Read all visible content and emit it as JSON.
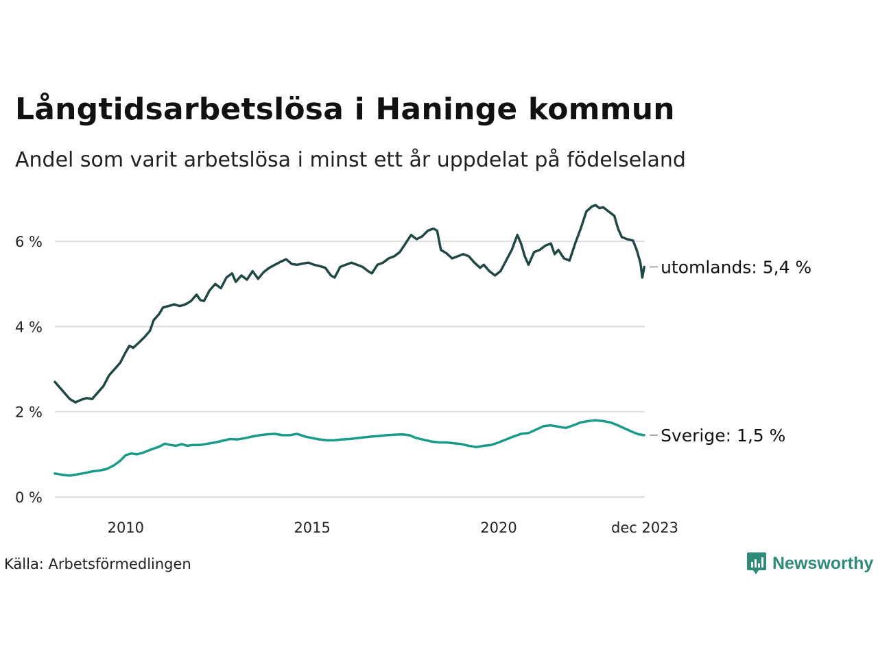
{
  "header": {
    "title": "Långtidsarbetslösa i Haninge kommun",
    "subtitle": "Andel som varit arbetslösa i minst ett år uppdelat på födelseland"
  },
  "footer": {
    "source": "Källa: Arbetsförmedlingen",
    "brand": "Newsworthy"
  },
  "colors": {
    "utomlands": "#1f4743",
    "sverige": "#1a9a88",
    "grid": "#dddddd",
    "brand": "#2e8b7a"
  },
  "chart_data": {
    "type": "line",
    "title": "Långtidsarbetslösa i Haninge kommun",
    "subtitle": "Andel som varit arbetslösa i minst ett år uppdelat på födelseland",
    "xlabel": "",
    "ylabel": "",
    "ylim": [
      0,
      7
    ],
    "xlim": [
      2008.1,
      2023.917
    ],
    "y_ticks": [
      {
        "value": 0,
        "label": "0 %"
      },
      {
        "value": 2,
        "label": "2 %"
      },
      {
        "value": 4,
        "label": "4 %"
      },
      {
        "value": 6,
        "label": "6 %"
      }
    ],
    "x_ticks": [
      {
        "value": 2010,
        "label": "2010"
      },
      {
        "value": 2015,
        "label": "2015"
      },
      {
        "value": 2020,
        "label": "2020"
      },
      {
        "value": 2023.917,
        "label": "dec 2023"
      }
    ],
    "grid": true,
    "series": [
      {
        "name": "utomlands",
        "end_label": "utomlands: 5,4 %",
        "color": "#1f4743",
        "points": [
          [
            2008.1,
            2.7
          ],
          [
            2008.2,
            2.6
          ],
          [
            2008.35,
            2.45
          ],
          [
            2008.5,
            2.3
          ],
          [
            2008.65,
            2.22
          ],
          [
            2008.8,
            2.28
          ],
          [
            2008.95,
            2.32
          ],
          [
            2009.1,
            2.3
          ],
          [
            2009.25,
            2.45
          ],
          [
            2009.4,
            2.6
          ],
          [
            2009.55,
            2.85
          ],
          [
            2009.7,
            3.0
          ],
          [
            2009.85,
            3.15
          ],
          [
            2010.0,
            3.4
          ],
          [
            2010.1,
            3.55
          ],
          [
            2010.2,
            3.5
          ],
          [
            2010.35,
            3.62
          ],
          [
            2010.5,
            3.75
          ],
          [
            2010.65,
            3.9
          ],
          [
            2010.75,
            4.15
          ],
          [
            2010.9,
            4.3
          ],
          [
            2011.0,
            4.45
          ],
          [
            2011.15,
            4.48
          ],
          [
            2011.3,
            4.52
          ],
          [
            2011.45,
            4.48
          ],
          [
            2011.6,
            4.52
          ],
          [
            2011.75,
            4.6
          ],
          [
            2011.9,
            4.75
          ],
          [
            2012.0,
            4.62
          ],
          [
            2012.1,
            4.6
          ],
          [
            2012.25,
            4.85
          ],
          [
            2012.4,
            5.0
          ],
          [
            2012.55,
            4.9
          ],
          [
            2012.7,
            5.15
          ],
          [
            2012.85,
            5.25
          ],
          [
            2012.95,
            5.05
          ],
          [
            2013.1,
            5.2
          ],
          [
            2013.25,
            5.1
          ],
          [
            2013.4,
            5.3
          ],
          [
            2013.55,
            5.12
          ],
          [
            2013.7,
            5.28
          ],
          [
            2013.85,
            5.38
          ],
          [
            2014.0,
            5.45
          ],
          [
            2014.15,
            5.52
          ],
          [
            2014.3,
            5.58
          ],
          [
            2014.45,
            5.47
          ],
          [
            2014.6,
            5.45
          ],
          [
            2014.75,
            5.48
          ],
          [
            2014.9,
            5.5
          ],
          [
            2015.05,
            5.45
          ],
          [
            2015.2,
            5.42
          ],
          [
            2015.35,
            5.38
          ],
          [
            2015.5,
            5.2
          ],
          [
            2015.6,
            5.15
          ],
          [
            2015.75,
            5.4
          ],
          [
            2015.9,
            5.45
          ],
          [
            2016.05,
            5.5
          ],
          [
            2016.2,
            5.45
          ],
          [
            2016.35,
            5.4
          ],
          [
            2016.5,
            5.3
          ],
          [
            2016.6,
            5.25
          ],
          [
            2016.75,
            5.45
          ],
          [
            2016.9,
            5.5
          ],
          [
            2017.05,
            5.6
          ],
          [
            2017.2,
            5.65
          ],
          [
            2017.35,
            5.75
          ],
          [
            2017.5,
            5.95
          ],
          [
            2017.65,
            6.15
          ],
          [
            2017.8,
            6.05
          ],
          [
            2017.95,
            6.12
          ],
          [
            2018.1,
            6.25
          ],
          [
            2018.25,
            6.3
          ],
          [
            2018.35,
            6.25
          ],
          [
            2018.45,
            5.8
          ],
          [
            2018.6,
            5.72
          ],
          [
            2018.75,
            5.6
          ],
          [
            2018.9,
            5.65
          ],
          [
            2019.05,
            5.7
          ],
          [
            2019.2,
            5.65
          ],
          [
            2019.35,
            5.5
          ],
          [
            2019.5,
            5.38
          ],
          [
            2019.6,
            5.45
          ],
          [
            2019.75,
            5.3
          ],
          [
            2019.9,
            5.2
          ],
          [
            2020.05,
            5.3
          ],
          [
            2020.2,
            5.55
          ],
          [
            2020.35,
            5.8
          ],
          [
            2020.5,
            6.15
          ],
          [
            2020.6,
            5.95
          ],
          [
            2020.7,
            5.65
          ],
          [
            2020.8,
            5.45
          ],
          [
            2020.95,
            5.75
          ],
          [
            2021.1,
            5.8
          ],
          [
            2021.25,
            5.9
          ],
          [
            2021.4,
            5.95
          ],
          [
            2021.5,
            5.7
          ],
          [
            2021.6,
            5.8
          ],
          [
            2021.75,
            5.6
          ],
          [
            2021.9,
            5.55
          ],
          [
            2022.05,
            5.95
          ],
          [
            2022.2,
            6.3
          ],
          [
            2022.35,
            6.7
          ],
          [
            2022.5,
            6.82
          ],
          [
            2022.6,
            6.85
          ],
          [
            2022.7,
            6.78
          ],
          [
            2022.8,
            6.8
          ],
          [
            2022.95,
            6.7
          ],
          [
            2023.1,
            6.6
          ],
          [
            2023.2,
            6.3
          ],
          [
            2023.3,
            6.1
          ],
          [
            2023.45,
            6.05
          ],
          [
            2023.6,
            6.02
          ],
          [
            2023.7,
            5.8
          ],
          [
            2023.8,
            5.5
          ],
          [
            2023.85,
            5.15
          ],
          [
            2023.9,
            5.4
          ]
        ]
      },
      {
        "name": "Sverige",
        "end_label": "Sverige: 1,5 %",
        "color": "#1a9a88",
        "points": [
          [
            2008.1,
            0.55
          ],
          [
            2008.3,
            0.52
          ],
          [
            2008.5,
            0.5
          ],
          [
            2008.7,
            0.53
          ],
          [
            2008.9,
            0.56
          ],
          [
            2009.1,
            0.6
          ],
          [
            2009.3,
            0.62
          ],
          [
            2009.5,
            0.66
          ],
          [
            2009.7,
            0.75
          ],
          [
            2009.85,
            0.85
          ],
          [
            2010.0,
            0.98
          ],
          [
            2010.15,
            1.02
          ],
          [
            2010.3,
            1.0
          ],
          [
            2010.5,
            1.05
          ],
          [
            2010.7,
            1.12
          ],
          [
            2010.9,
            1.18
          ],
          [
            2011.05,
            1.25
          ],
          [
            2011.2,
            1.22
          ],
          [
            2011.35,
            1.2
          ],
          [
            2011.5,
            1.24
          ],
          [
            2011.65,
            1.2
          ],
          [
            2011.8,
            1.22
          ],
          [
            2012.0,
            1.22
          ],
          [
            2012.2,
            1.25
          ],
          [
            2012.4,
            1.28
          ],
          [
            2012.6,
            1.32
          ],
          [
            2012.8,
            1.36
          ],
          [
            2013.0,
            1.35
          ],
          [
            2013.2,
            1.38
          ],
          [
            2013.4,
            1.42
          ],
          [
            2013.6,
            1.45
          ],
          [
            2013.8,
            1.47
          ],
          [
            2014.0,
            1.48
          ],
          [
            2014.2,
            1.45
          ],
          [
            2014.4,
            1.45
          ],
          [
            2014.6,
            1.48
          ],
          [
            2014.8,
            1.42
          ],
          [
            2015.0,
            1.38
          ],
          [
            2015.2,
            1.35
          ],
          [
            2015.4,
            1.33
          ],
          [
            2015.6,
            1.33
          ],
          [
            2015.8,
            1.35
          ],
          [
            2016.0,
            1.36
          ],
          [
            2016.2,
            1.38
          ],
          [
            2016.4,
            1.4
          ],
          [
            2016.6,
            1.42
          ],
          [
            2016.8,
            1.43
          ],
          [
            2017.0,
            1.45
          ],
          [
            2017.2,
            1.46
          ],
          [
            2017.4,
            1.47
          ],
          [
            2017.6,
            1.45
          ],
          [
            2017.8,
            1.38
          ],
          [
            2018.0,
            1.34
          ],
          [
            2018.2,
            1.3
          ],
          [
            2018.4,
            1.28
          ],
          [
            2018.6,
            1.28
          ],
          [
            2018.8,
            1.26
          ],
          [
            2019.0,
            1.24
          ],
          [
            2019.2,
            1.2
          ],
          [
            2019.4,
            1.17
          ],
          [
            2019.6,
            1.2
          ],
          [
            2019.8,
            1.22
          ],
          [
            2020.0,
            1.28
          ],
          [
            2020.2,
            1.35
          ],
          [
            2020.4,
            1.42
          ],
          [
            2020.6,
            1.48
          ],
          [
            2020.8,
            1.5
          ],
          [
            2021.0,
            1.58
          ],
          [
            2021.2,
            1.66
          ],
          [
            2021.4,
            1.68
          ],
          [
            2021.6,
            1.65
          ],
          [
            2021.8,
            1.62
          ],
          [
            2022.0,
            1.68
          ],
          [
            2022.2,
            1.75
          ],
          [
            2022.4,
            1.78
          ],
          [
            2022.6,
            1.8
          ],
          [
            2022.8,
            1.78
          ],
          [
            2023.0,
            1.75
          ],
          [
            2023.2,
            1.68
          ],
          [
            2023.4,
            1.6
          ],
          [
            2023.6,
            1.52
          ],
          [
            2023.75,
            1.47
          ],
          [
            2023.9,
            1.45
          ]
        ]
      }
    ]
  }
}
